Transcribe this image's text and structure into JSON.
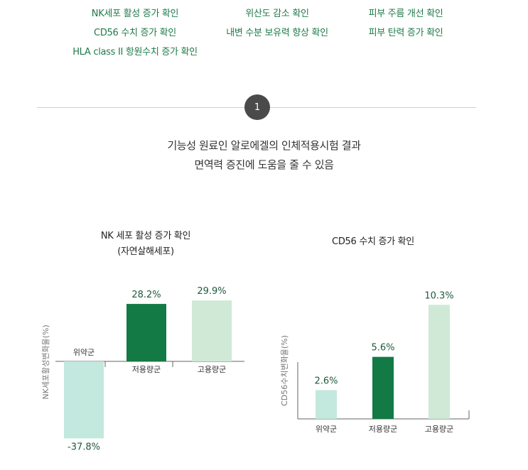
{
  "top_items": [
    [
      "NK세포 활성 증가 확인",
      "위산도 감소 확인",
      "피부 주름 개선 확인"
    ],
    [
      "CD56 수치 증가 확인",
      "내변 수분 보유력 향상 확인",
      "피부 탄력 증가 확인"
    ],
    [
      "HLA class II 항원수치 증가 확인",
      "",
      ""
    ]
  ],
  "step_number": "1",
  "headline": {
    "line1": "기능성 원료인 알로에겔의 인체적용시험 결과",
    "line2": "면역력 증진에 도움을 줄 수 있음"
  },
  "colors": {
    "placebo": "#c3e8de",
    "low": "#137a45",
    "high": "#cfe9d6",
    "accent_text": "#1f7a4a"
  },
  "chart_data": [
    {
      "type": "bar",
      "title": "NK 세포 활성 증가 확인",
      "subtitle": "(자연살해세포)",
      "ylabel": "NK세포활성변화율(%)",
      "categories": [
        "위약군",
        "저용량군",
        "고용량군"
      ],
      "values": [
        -37.8,
        28.2,
        29.9
      ],
      "labels": [
        "-37.8%",
        "28.2%",
        "29.9%"
      ],
      "ylim": [
        -40,
        30
      ]
    },
    {
      "type": "bar",
      "title": "CD56 수치 증가 확인",
      "ylabel": "CD56수치변화율(%)",
      "categories": [
        "위약군",
        "저용량군",
        "고용량군"
      ],
      "values": [
        2.6,
        5.6,
        10.3
      ],
      "labels": [
        "2.6%",
        "5.6%",
        "10.3%"
      ],
      "ylim": [
        0,
        10.5
      ]
    }
  ]
}
